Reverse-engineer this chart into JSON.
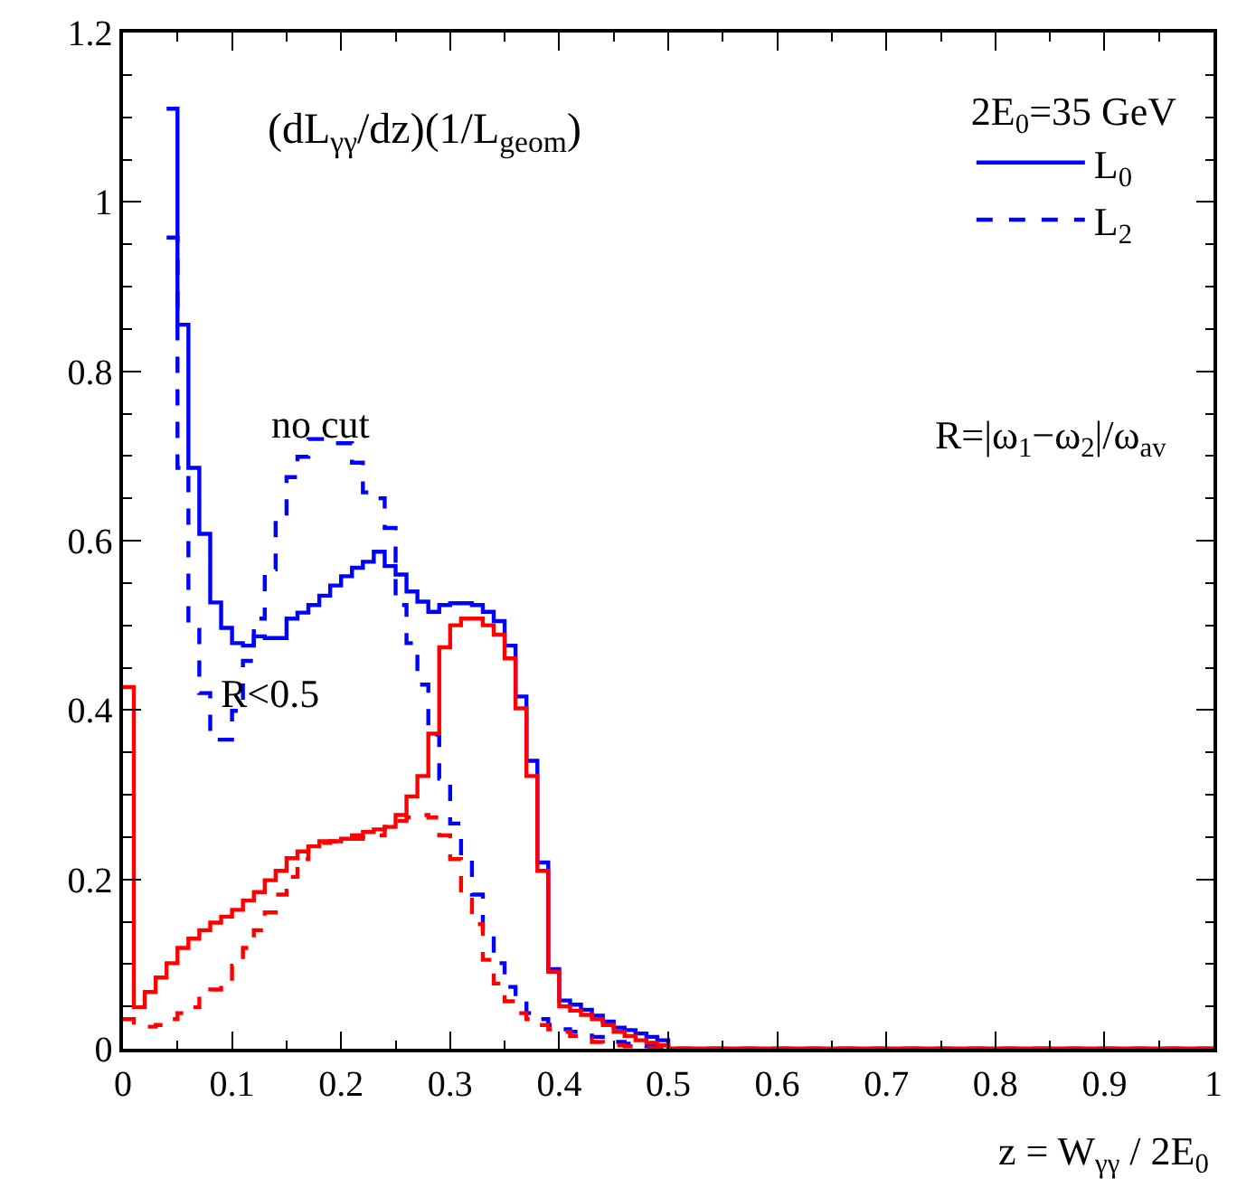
{
  "chart_data": {
    "type": "step",
    "ylabel": "(dL$_{γγ}$/dz)(1/L$_{geom}$)",
    "xlabel": "z = W$_{γγ}$ / 2E$_{0}$",
    "legend_title": "2E$_{0}$=35 GeV",
    "legend": "top right",
    "x": [
      0,
      0.01,
      0.02,
      0.03,
      0.04,
      0.05,
      0.06,
      0.07,
      0.08,
      0.09,
      0.1,
      0.11,
      0.12,
      0.13,
      0.14,
      0.15,
      0.16,
      0.17,
      0.18,
      0.19,
      0.2,
      0.21,
      0.22,
      0.23,
      0.24,
      0.25,
      0.26,
      0.27,
      0.28,
      0.29,
      0.3,
      0.31,
      0.32,
      0.33,
      0.34,
      0.35,
      0.36,
      0.37,
      0.38,
      0.39,
      0.4,
      0.41,
      0.42,
      0.43,
      0.44,
      0.45,
      0.46,
      0.47,
      0.48,
      0.49,
      0.5,
      1
    ],
    "series": [
      {
        "name": "L$_{0}$",
        "color": "#0000ff",
        "line_style": "solid",
        "values": [
          null,
          null,
          null,
          null,
          1.11,
          0.855,
          0.686,
          0.608,
          0.527,
          0.497,
          0.479,
          0.476,
          0.487,
          0.485,
          0.485,
          0.508,
          0.515,
          0.524,
          0.535,
          0.547,
          0.558,
          0.568,
          0.575,
          0.587,
          0.57,
          0.56,
          0.54,
          0.528,
          0.516,
          0.524,
          0.526,
          0.526,
          0.524,
          0.516,
          0.505,
          0.476,
          0.416,
          0.34,
          0.22,
          0.094,
          0.057,
          0.052,
          0.046,
          0.039,
          0.032,
          0.025,
          0.022,
          0.018,
          0.014,
          0.01,
          0,
          0
        ]
      },
      {
        "name": "L$_{2}$",
        "color": "#0000ff",
        "line_style": "dashed",
        "values": [
          null,
          null,
          null,
          null,
          0.958,
          0.686,
          0.5,
          0.42,
          0.365,
          0.365,
          0.399,
          0.458,
          0.508,
          0.566,
          0.629,
          0.675,
          0.699,
          0.72,
          0.72,
          0.715,
          0.715,
          0.692,
          0.657,
          0.65,
          0.615,
          0.524,
          0.479,
          0.43,
          0.371,
          0.319,
          0.266,
          0.224,
          0.182,
          0.136,
          0.101,
          0.073,
          0.056,
          0.042,
          0.035,
          0.028,
          0.023,
          0.02,
          0.018,
          0.014,
          0.01,
          0.008,
          0.006,
          0.004,
          0.003,
          0.002,
          0,
          0
        ]
      },
      {
        "color": "#ff0000",
        "line_style": "solid",
        "values": [
          0.427,
          0.049,
          0.067,
          0.084,
          0.101,
          0.119,
          0.13,
          0.14,
          0.149,
          0.156,
          0.164,
          0.175,
          0.185,
          0.199,
          0.21,
          0.225,
          0.233,
          0.239,
          0.245,
          0.245,
          0.248,
          0.252,
          0.256,
          0.259,
          0.262,
          0.276,
          0.298,
          0.322,
          0.372,
          0.474,
          0.5,
          0.508,
          0.508,
          0.5,
          0.489,
          0.461,
          0.402,
          0.322,
          0.21,
          0.091,
          0.05,
          0.045,
          0.04,
          0.035,
          0.028,
          0.02,
          0.015,
          0.01,
          0.007,
          0.004,
          0,
          0
        ]
      },
      {
        "color": "#ff0000",
        "line_style": "dashed",
        "values": [
          0.035,
          0.028,
          0.026,
          0.028,
          0.035,
          0.042,
          0.049,
          0.059,
          0.07,
          0.08,
          0.098,
          0.119,
          0.14,
          0.161,
          0.182,
          0.203,
          0.224,
          0.238,
          0.243,
          0.245,
          0.248,
          0.248,
          0.25,
          0.252,
          0.262,
          0.269,
          0.273,
          0.276,
          0.273,
          0.252,
          0.224,
          0.182,
          0.147,
          0.105,
          0.077,
          0.056,
          0.042,
          0.035,
          0.028,
          0.023,
          0.02,
          0.015,
          0.012,
          0.008,
          0.006,
          0.004,
          0.003,
          0.002,
          0.001,
          0.001,
          0,
          0
        ]
      }
    ],
    "annotations": [
      "no cut",
      "R<0.5",
      "R=|ω$_{1}$−ω$_{2}$|/ω$_{av}$"
    ],
    "xlim": [
      0,
      1
    ],
    "ylim": [
      0,
      1.2
    ],
    "xticks": [
      0,
      0.1,
      0.2,
      0.3,
      0.4,
      0.5,
      0.6,
      0.7,
      0.8,
      0.9,
      1
    ],
    "yticks": [
      0,
      0.2,
      0.4,
      0.6,
      0.8,
      1,
      1.2
    ]
  }
}
